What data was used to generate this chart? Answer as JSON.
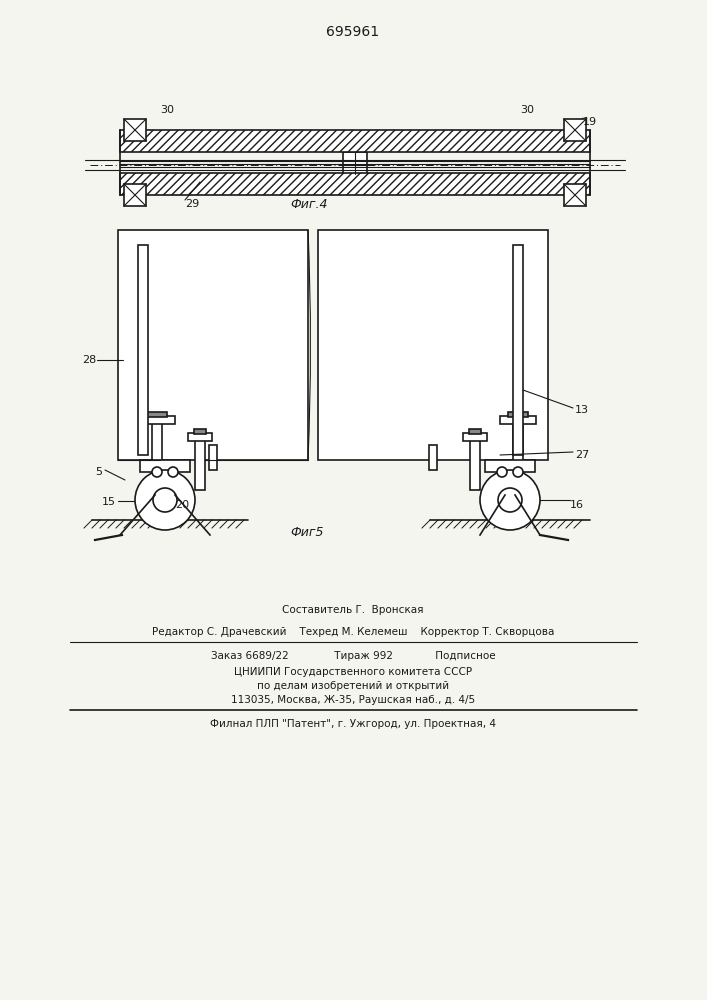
{
  "patent_number": "695961",
  "fig4_label": "Фиг.4",
  "fig5_label": "Фиг5",
  "bg_color": "#f5f5f0",
  "line_color": "#1a1a1a",
  "hatch_color": "#555555",
  "text_color": "#1a1a1a",
  "footer_lines": [
    "Составитель Г.  Вронская",
    "Редактор С. Драчевский    Техред М. Келемеш    Корректор Т. Скворцова",
    "Заказ 6689/22              Тираж 992             Подписное",
    "ЦНИИПИ Государственного комитета СССР",
    "по делам изобретений и открытий",
    "113035, Москва, Ж-35, Раушская наб., д. 4/5",
    "Филнал ПЛП \"Патент\", г. Ужгород, ул. Проектная, 4"
  ]
}
